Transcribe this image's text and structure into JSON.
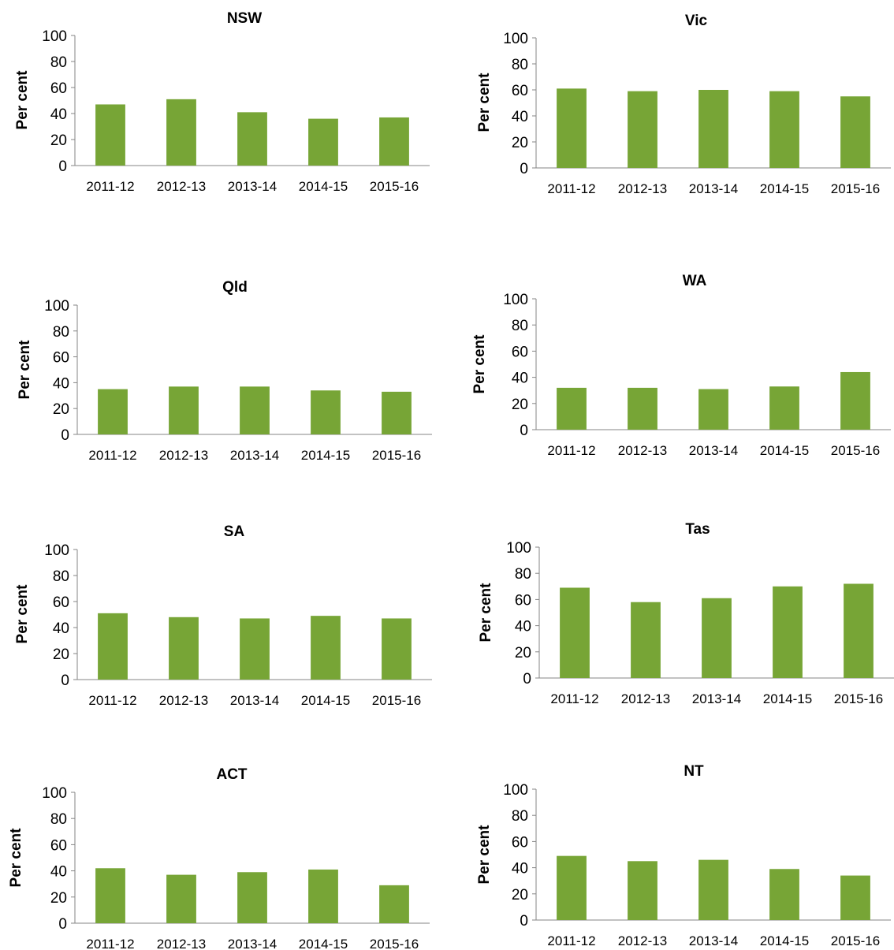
{
  "colors": {
    "bar": "#77a536",
    "axis": "#868686",
    "text": "#000000",
    "background": "#ffffff"
  },
  "chart_data": [
    {
      "type": "bar",
      "title": "NSW",
      "ylabel": "Per cent",
      "xlabel": "",
      "categories": [
        "2011-12",
        "2012-13",
        "2013-14",
        "2014-15",
        "2015-16"
      ],
      "values": [
        47,
        51,
        41,
        36,
        37
      ],
      "ylim": [
        0,
        100
      ],
      "yticks": [
        0,
        20,
        40,
        60,
        80,
        100
      ],
      "grid": false,
      "legend": "none"
    },
    {
      "type": "bar",
      "title": "Vic",
      "ylabel": "Per cent",
      "xlabel": "",
      "categories": [
        "2011-12",
        "2012-13",
        "2013-14",
        "2014-15",
        "2015-16"
      ],
      "values": [
        61,
        59,
        60,
        59,
        55
      ],
      "ylim": [
        0,
        100
      ],
      "yticks": [
        0,
        20,
        40,
        60,
        80,
        100
      ],
      "grid": false,
      "legend": "none"
    },
    {
      "type": "bar",
      "title": "Qld",
      "ylabel": "Per cent",
      "xlabel": "",
      "categories": [
        "2011-12",
        "2012-13",
        "2013-14",
        "2014-15",
        "2015-16"
      ],
      "values": [
        35,
        37,
        37,
        34,
        33
      ],
      "ylim": [
        0,
        100
      ],
      "yticks": [
        0,
        20,
        40,
        60,
        80,
        100
      ],
      "grid": false,
      "legend": "none"
    },
    {
      "type": "bar",
      "title": "WA",
      "ylabel": "Per cent",
      "xlabel": "",
      "categories": [
        "2011-12",
        "2012-13",
        "2013-14",
        "2014-15",
        "2015-16"
      ],
      "values": [
        32,
        32,
        31,
        33,
        44
      ],
      "ylim": [
        0,
        100
      ],
      "yticks": [
        0,
        20,
        40,
        60,
        80,
        100
      ],
      "grid": false,
      "legend": "none"
    },
    {
      "type": "bar",
      "title": "SA",
      "ylabel": "Per cent",
      "xlabel": "",
      "categories": [
        "2011-12",
        "2012-13",
        "2013-14",
        "2014-15",
        "2015-16"
      ],
      "values": [
        51,
        48,
        47,
        49,
        47
      ],
      "ylim": [
        0,
        100
      ],
      "yticks": [
        0,
        20,
        40,
        60,
        80,
        100
      ],
      "grid": false,
      "legend": "none"
    },
    {
      "type": "bar",
      "title": "Tas",
      "ylabel": "Per cent",
      "xlabel": "",
      "categories": [
        "2011-12",
        "2012-13",
        "2013-14",
        "2014-15",
        "2015-16"
      ],
      "values": [
        69,
        58,
        61,
        70,
        72
      ],
      "ylim": [
        0,
        100
      ],
      "yticks": [
        0,
        20,
        40,
        60,
        80,
        100
      ],
      "grid": false,
      "legend": "none"
    },
    {
      "type": "bar",
      "title": "ACT",
      "ylabel": "Per cent",
      "xlabel": "",
      "categories": [
        "2011-12",
        "2012-13",
        "2013-14",
        "2014-15",
        "2015-16"
      ],
      "values": [
        42,
        37,
        39,
        41,
        29
      ],
      "ylim": [
        0,
        100
      ],
      "yticks": [
        0,
        20,
        40,
        60,
        80,
        100
      ],
      "grid": false,
      "legend": "none"
    },
    {
      "type": "bar",
      "title": "NT",
      "ylabel": "Per cent",
      "xlabel": "",
      "categories": [
        "2011-12",
        "2012-13",
        "2013-14",
        "2014-15",
        "2015-16"
      ],
      "values": [
        49,
        45,
        46,
        39,
        34
      ],
      "ylim": [
        0,
        100
      ],
      "yticks": [
        0,
        20,
        40,
        60,
        80,
        100
      ],
      "grid": false,
      "legend": "none"
    }
  ]
}
